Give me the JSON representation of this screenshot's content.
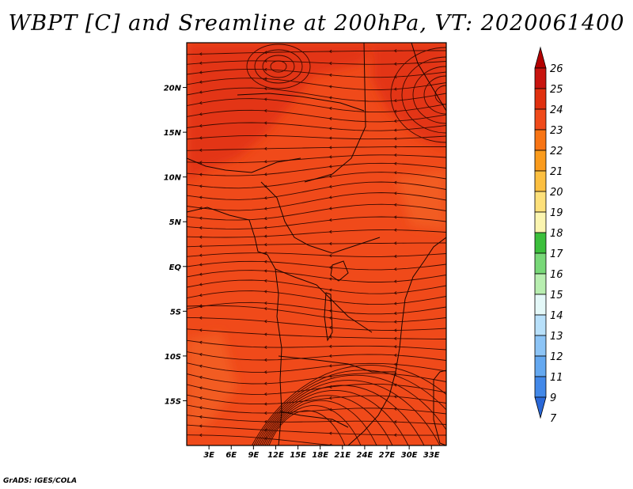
{
  "title": "WBPT [C] and Sreamline at 200hPa, VT: 2020061400",
  "credit": "GrADS: IGES/COLA",
  "map": {
    "lat_ticks": [
      {
        "label": "20N",
        "value": 20
      },
      {
        "label": "15N",
        "value": 15
      },
      {
        "label": "10N",
        "value": 10
      },
      {
        "label": "5N",
        "value": 5
      },
      {
        "label": "EQ",
        "value": 0
      },
      {
        "label": "5S",
        "value": -5
      },
      {
        "label": "10S",
        "value": -10
      },
      {
        "label": "15S",
        "value": -15
      }
    ],
    "lon_ticks": [
      {
        "label": "3E",
        "value": 3
      },
      {
        "label": "6E",
        "value": 6
      },
      {
        "label": "9E",
        "value": 9
      },
      {
        "label": "12E",
        "value": 12
      },
      {
        "label": "15E",
        "value": 15
      },
      {
        "label": "18E",
        "value": 18
      },
      {
        "label": "21E",
        "value": 21
      },
      {
        "label": "24E",
        "value": 24
      },
      {
        "label": "27E",
        "value": 27
      },
      {
        "label": "30E",
        "value": 30
      },
      {
        "label": "33E",
        "value": 33
      }
    ],
    "lon_range": [
      0,
      35
    ],
    "lat_range": [
      -20,
      25
    ],
    "field_colors": {
      "dominant": "#f04a1a",
      "warm": "#e33517",
      "cool": "#f25c22"
    }
  },
  "colorbar": {
    "levels": [
      {
        "label": "26",
        "color": "#b30000"
      },
      {
        "label": "25",
        "color": "#c8140f"
      },
      {
        "label": "24",
        "color": "#e0300f"
      },
      {
        "label": "23",
        "color": "#f04a1a"
      },
      {
        "label": "22",
        "color": "#f87414"
      },
      {
        "label": "21",
        "color": "#fa9b1c"
      },
      {
        "label": "20",
        "color": "#fcbf40"
      },
      {
        "label": "19",
        "color": "#fde07a"
      },
      {
        "label": "18",
        "color": "#fbf5b0"
      },
      {
        "label": "17",
        "color": "#3cbf3c"
      },
      {
        "label": "16",
        "color": "#78d878"
      },
      {
        "label": "15",
        "color": "#b8eeb0"
      },
      {
        "label": "14",
        "color": "#e4f8f8"
      },
      {
        "label": "13",
        "color": "#b8e0fa"
      },
      {
        "label": "12",
        "color": "#8cc4f6"
      },
      {
        "label": "11",
        "color": "#64a8f0"
      },
      {
        "label": "9",
        "color": "#4288e8"
      },
      {
        "label": "7",
        "color": "#2a68d8"
      }
    ]
  }
}
